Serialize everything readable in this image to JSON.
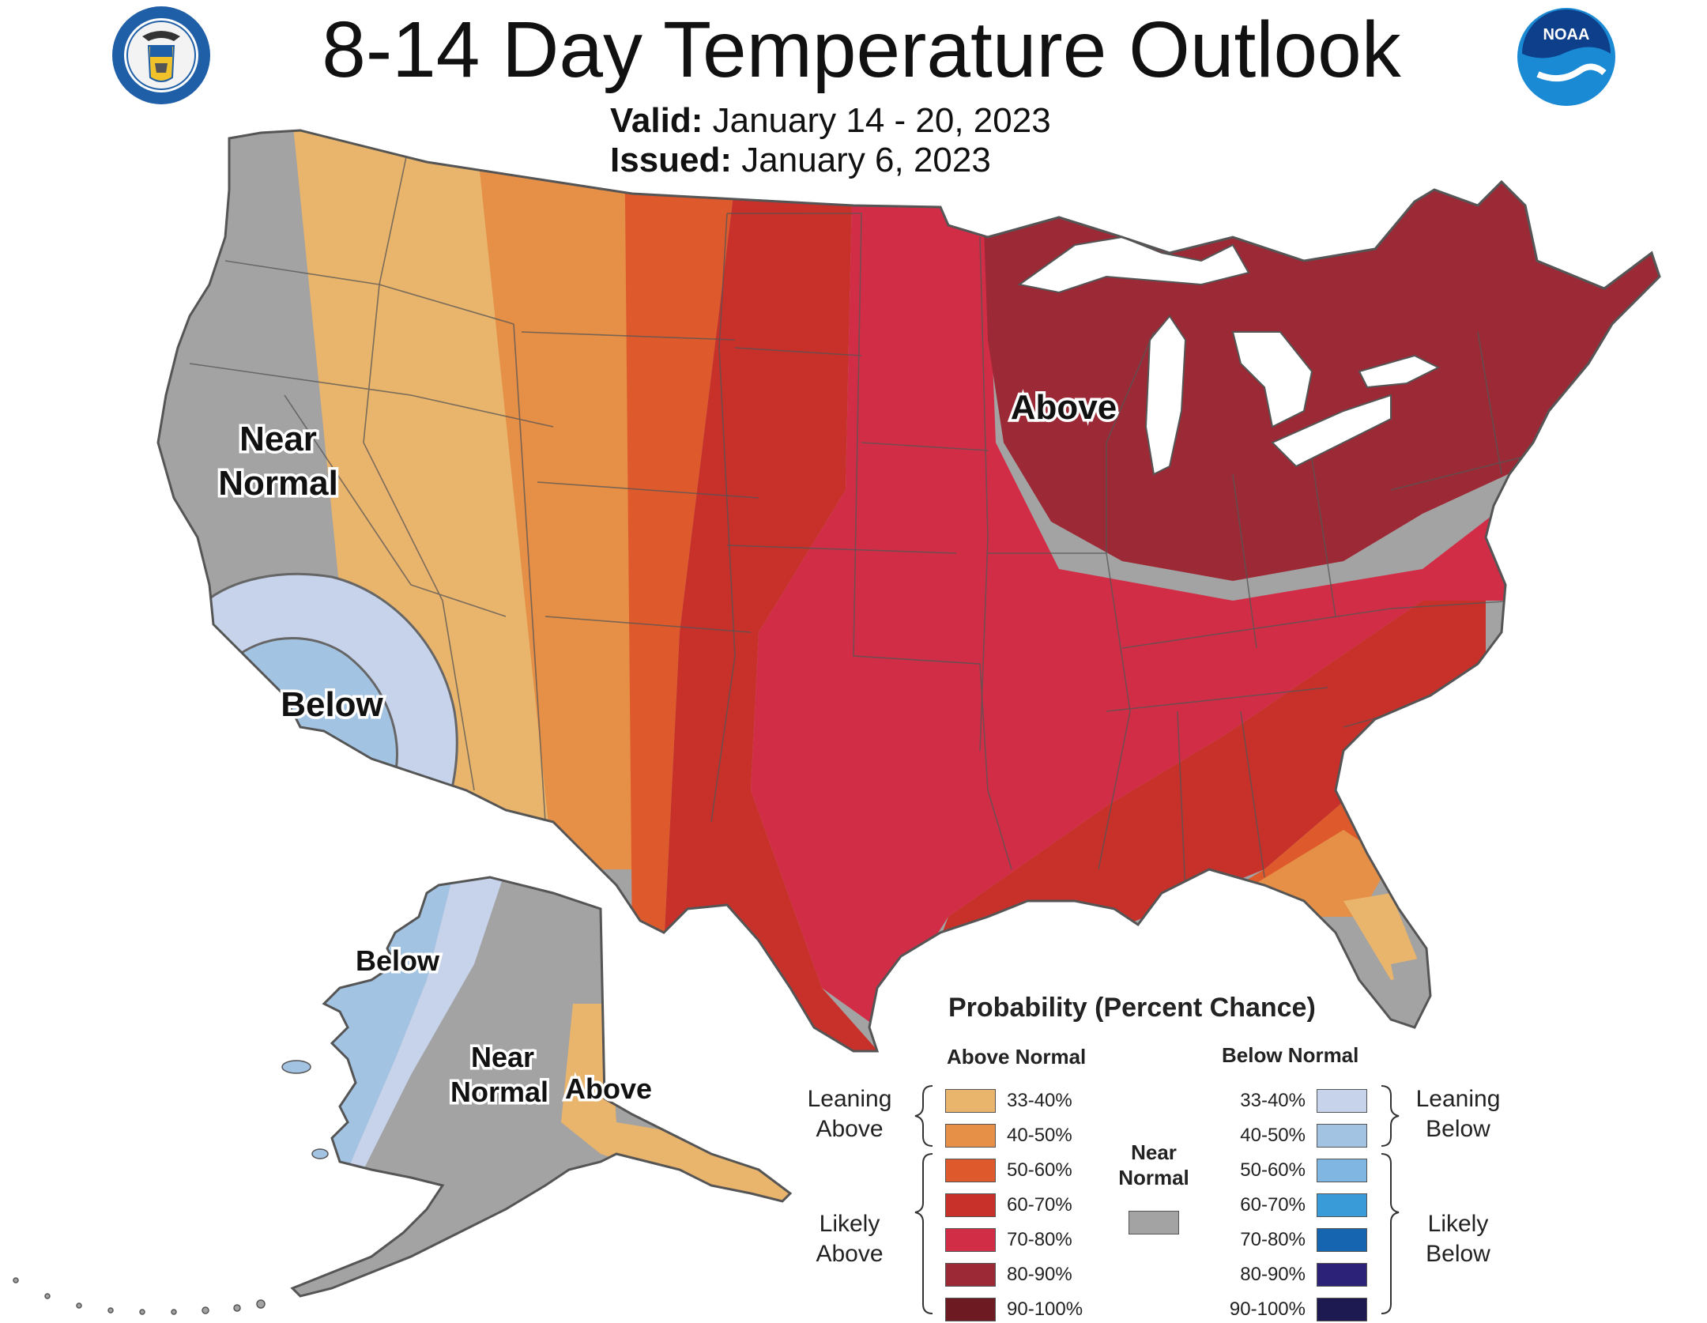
{
  "title": "8-14 Day Temperature Outlook",
  "valid_label": "Valid:",
  "valid_dates": "January 14 - 20, 2023",
  "issued_label": "Issued:",
  "issued_date": "January 6, 2023",
  "seal_text": "DEPARTMENT OF COMMERCE · UNITED STATES OF AMERICA",
  "noaa_logo_text": "NOAA",
  "map_labels": {
    "conus_near_normal_1": "Near",
    "conus_near_normal_2": "Normal",
    "conus_below": "Below",
    "conus_above": "Above",
    "ak_below": "Below",
    "ak_near_normal_1": "Near",
    "ak_near_normal_2": "Normal",
    "ak_above": "Above"
  },
  "legend": {
    "title": "Probability (Percent Chance)",
    "above_header": "Above Normal",
    "below_header": "Below Normal",
    "leaning_above": [
      "Leaning",
      "Above"
    ],
    "likely_above": [
      "Likely",
      "Above"
    ],
    "leaning_below": [
      "Leaning",
      "Below"
    ],
    "likely_below": [
      "Likely",
      "Below"
    ],
    "near_normal": [
      "Near",
      "Normal"
    ],
    "near_normal_color": "#a3a3a3",
    "above": [
      {
        "label": "33-40%",
        "color": "#e9b46c"
      },
      {
        "label": "40-50%",
        "color": "#e58f47"
      },
      {
        "label": "50-60%",
        "color": "#de5a2c"
      },
      {
        "label": "60-70%",
        "color": "#c8302a"
      },
      {
        "label": "70-80%",
        "color": "#d22d46"
      },
      {
        "label": "80-90%",
        "color": "#9b2a36"
      },
      {
        "label": "90-100%",
        "color": "#6e1a22"
      }
    ],
    "below": [
      {
        "label": "33-40%",
        "color": "#c6d3ea"
      },
      {
        "label": "40-50%",
        "color": "#a3c3e3"
      },
      {
        "label": "50-60%",
        "color": "#7fb6e2"
      },
      {
        "label": "60-70%",
        "color": "#3a9bd9"
      },
      {
        "label": "70-80%",
        "color": "#1565b0"
      },
      {
        "label": "80-90%",
        "color": "#2c2277"
      },
      {
        "label": "90-100%",
        "color": "#1c1a50"
      }
    ]
  }
}
